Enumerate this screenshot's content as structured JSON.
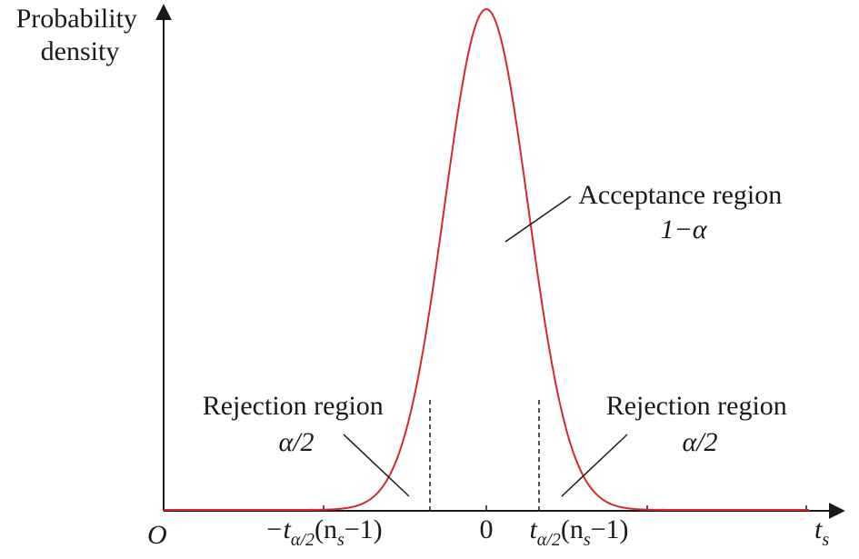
{
  "y_axis_label": [
    "Probability",
    "density"
  ],
  "x_axis_label": {
    "base": "t",
    "sub": "s"
  },
  "origin_label": "O",
  "ticks": {
    "left": {
      "prefix": "−t",
      "sub": "α/2",
      "open": "(n",
      "sub2": "s",
      "close": "−1)"
    },
    "center": "0",
    "right": {
      "prefix": "t",
      "sub": "α/2",
      "open": "(n",
      "sub2": "s",
      "close": "−1)"
    }
  },
  "annotations": {
    "acceptance": {
      "line1": "Acceptance region",
      "line2": "1−α"
    },
    "rejection_left": {
      "line1": "Rejection region",
      "line2": "α/2"
    },
    "rejection_right": {
      "line1": "Rejection region",
      "line2": "α/2"
    }
  },
  "colors": {
    "curve": "#d62a2a",
    "axis": "#1a1a1a"
  },
  "curve": {
    "type": "bell",
    "center": 0,
    "critical_values": [
      "−t_{α/2}(n_s−1)",
      "t_{α/2}(n_s−1)"
    ]
  }
}
